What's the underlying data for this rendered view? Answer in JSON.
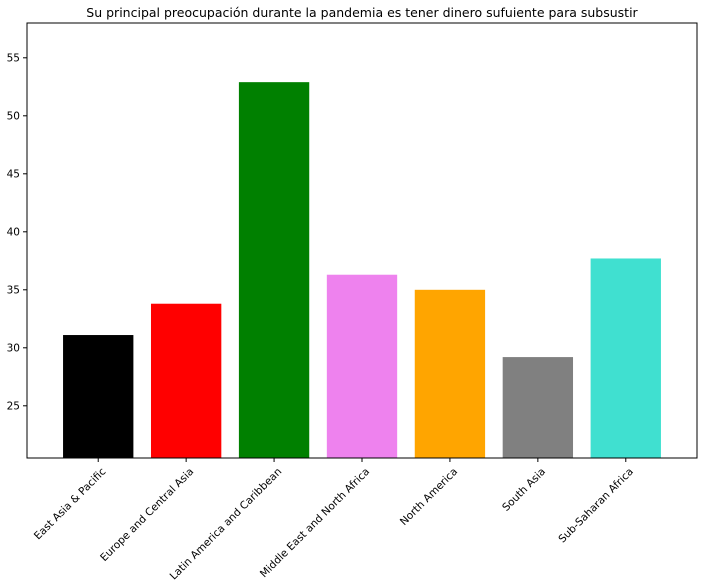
{
  "chart_data": {
    "type": "bar",
    "title": "Su principal preocupación durante la pandemia es tener dinero sufuiente para subsustir",
    "xlabel": "",
    "ylabel": "",
    "categories": [
      "East Asia & Pacific",
      "Europe and Central Asia",
      "Latin America and Caribbean",
      "Middle East and North Africa",
      "North America",
      "South Asia",
      "Sub-Saharan Africa"
    ],
    "values": [
      31.1,
      33.8,
      52.9,
      36.3,
      35.0,
      29.2,
      37.7
    ],
    "colors": [
      "#000000",
      "#ff0000",
      "#008000",
      "#ee82ee",
      "#ffa500",
      "#808080",
      "#40e0d0"
    ],
    "ylim": [
      20.5,
      58
    ],
    "yticks": [
      25,
      30,
      35,
      40,
      45,
      50,
      55
    ],
    "ytick_labels": [
      "25",
      "30",
      "35",
      "40",
      "45",
      "50",
      "55"
    ],
    "grid": false,
    "legend": "none"
  }
}
